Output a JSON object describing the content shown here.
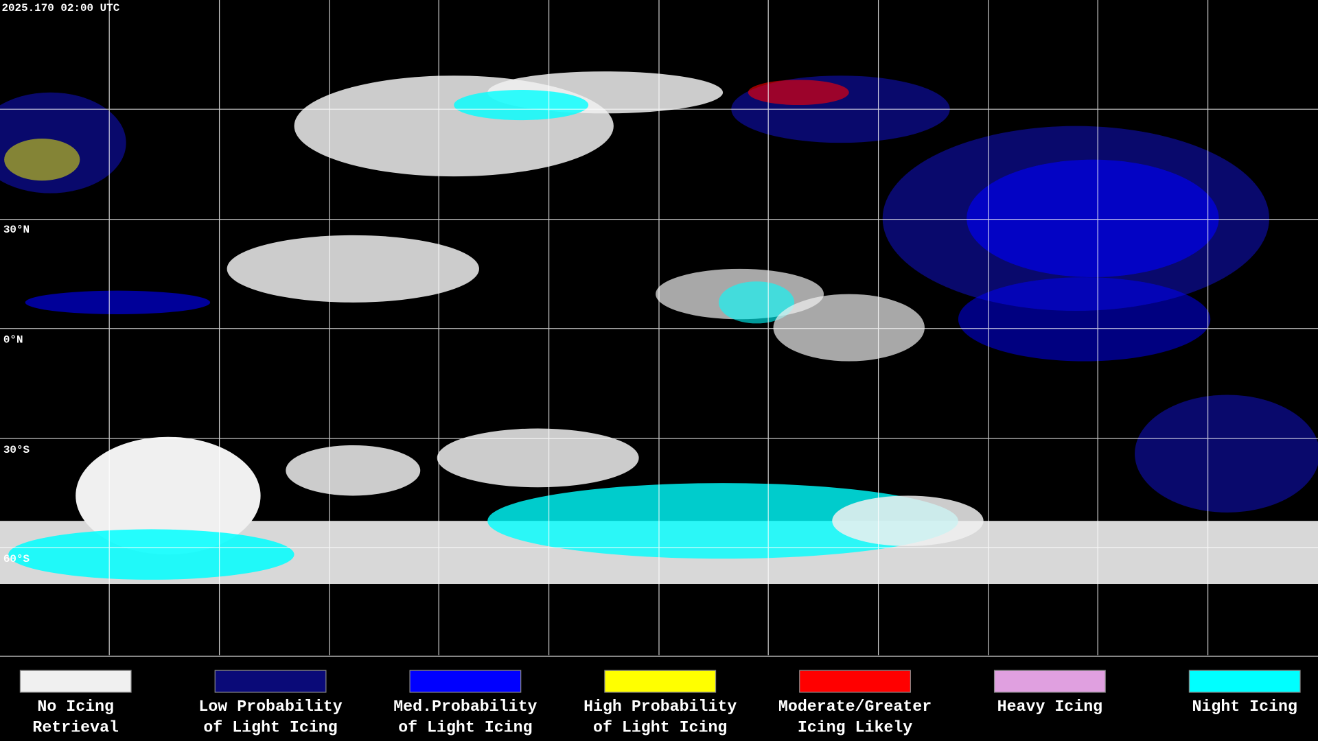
{
  "timestamp": "2025.170 02:00 UTC",
  "latitude_labels": [
    "30°N",
    "0°N",
    "30°S",
    "60°S"
  ],
  "legend": [
    {
      "label": [
        "No Icing",
        "Retrieval"
      ],
      "color": "#f0f0f0"
    },
    {
      "label": [
        "Low Probability",
        "of Light Icing"
      ],
      "color": "#0a0a78"
    },
    {
      "label": [
        "Med.Probability",
        "of Light Icing"
      ],
      "color": "#0000ff"
    },
    {
      "label": [
        "High Probability",
        "of Light Icing"
      ],
      "color": "#ffff00"
    },
    {
      "label": [
        "Moderate/Greater",
        "Icing Likely"
      ],
      "color": "#ff0000"
    },
    {
      "label": [
        "Heavy Icing"
      ],
      "color": "#e0a0e0"
    },
    {
      "label": [
        "Night Icing"
      ],
      "color": "#00ffff"
    }
  ]
}
